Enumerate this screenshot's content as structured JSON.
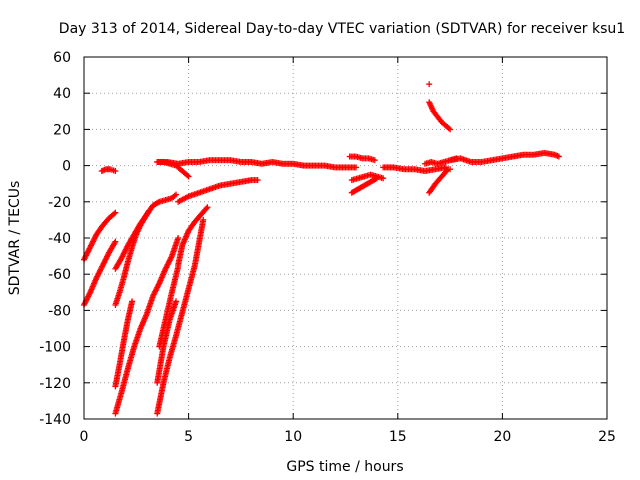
{
  "chart_data": {
    "type": "scatter",
    "title": "Day 313 of 2014, Sidereal Day-to-day VTEC variation (SDTVAR) for receiver ksu1",
    "xlabel": "GPS time / hours",
    "ylabel": "SDTVAR / TECUs",
    "xlim": [
      0,
      25
    ],
    "ylim": [
      -140,
      60
    ],
    "xticks": [
      0,
      5,
      10,
      15,
      20,
      25
    ],
    "yticks": [
      -140,
      -120,
      -100,
      -80,
      -60,
      -40,
      -20,
      0,
      20,
      40,
      60
    ],
    "grid": true,
    "marker": "+",
    "color": "#ff0000",
    "segments": [
      {
        "x": [
          0.0,
          0.3,
          0.6,
          0.9,
          1.2,
          1.5
        ],
        "y": [
          -52,
          -45,
          -38,
          -33,
          -29,
          -26
        ]
      },
      {
        "x": [
          0.0,
          0.3,
          0.6,
          0.9,
          1.2,
          1.5
        ],
        "y": [
          -77,
          -70,
          -62,
          -55,
          -48,
          -42
        ]
      },
      {
        "x": [
          0.85,
          1.05,
          1.25,
          1.5
        ],
        "y": [
          -3,
          -2,
          -2,
          -3
        ]
      },
      {
        "x": [
          1.5,
          1.7,
          1.9,
          2.1,
          2.3,
          2.5,
          2.7,
          2.9,
          3.1
        ],
        "y": [
          -77,
          -70,
          -62,
          -53,
          -45,
          -38,
          -33,
          -29,
          -25
        ]
      },
      {
        "x": [
          1.5,
          1.7,
          1.9,
          2.1,
          2.3
        ],
        "y": [
          -122,
          -110,
          -97,
          -85,
          -75
        ]
      },
      {
        "x": [
          1.5,
          1.8,
          2.1,
          2.4,
          2.7,
          3.0,
          3.3,
          3.6,
          3.9,
          4.2,
          4.5
        ],
        "y": [
          -137,
          -125,
          -112,
          -100,
          -90,
          -82,
          -72,
          -65,
          -57,
          -50,
          -40
        ]
      },
      {
        "x": [
          1.5,
          1.8,
          2.1,
          2.4,
          2.7,
          3.0,
          3.3,
          3.6,
          3.9,
          4.2,
          4.4
        ],
        "y": [
          -57,
          -51,
          -44,
          -38,
          -32,
          -27,
          -22,
          -20,
          -19,
          -18,
          -16
        ]
      },
      {
        "x": [
          3.5,
          3.8,
          4.1,
          4.4,
          4.7,
          5.0,
          5.3,
          5.7
        ],
        "y": [
          -137,
          -120,
          -106,
          -94,
          -81,
          -68,
          -55,
          -30
        ]
      },
      {
        "x": [
          4.5,
          4.7,
          5.0,
          5.3,
          5.6,
          5.9
        ],
        "y": [
          -55,
          -44,
          -36,
          -31,
          -27,
          -23
        ]
      },
      {
        "x": [
          3.5,
          3.8,
          4.1,
          4.4
        ],
        "y": [
          -120,
          -100,
          -85,
          -75
        ]
      },
      {
        "x": [
          3.6,
          3.9,
          4.2,
          4.5
        ],
        "y": [
          -100,
          -85,
          -70,
          -56
        ]
      },
      {
        "x": [
          4.5,
          5.0,
          5.5,
          6.0,
          6.5,
          7.0,
          7.5,
          8.0,
          8.3
        ],
        "y": [
          -20,
          -17,
          -15,
          -13,
          -11,
          -10,
          -9,
          -8,
          -8
        ]
      },
      {
        "x": [
          3.5,
          3.8,
          4.1,
          4.4,
          4.7,
          5.0
        ],
        "y": [
          2,
          2,
          1,
          0,
          -3,
          -6
        ]
      },
      {
        "x": [
          3.5,
          4.0,
          4.5,
          5.0,
          5.5,
          6.0,
          6.5,
          7.0,
          7.5,
          8.0,
          8.5,
          9.0,
          9.5,
          10.0,
          10.5,
          11.0,
          11.5,
          12.0,
          12.5,
          13.0
        ],
        "y": [
          2,
          2,
          1,
          2,
          2,
          3,
          3,
          3,
          2,
          2,
          1,
          2,
          1,
          1,
          0,
          0,
          0,
          -1,
          -1,
          -1
        ]
      },
      {
        "x": [
          12.7,
          13.0,
          13.3,
          13.6,
          13.9
        ],
        "y": [
          5,
          5,
          4,
          4,
          3
        ]
      },
      {
        "x": [
          12.8,
          13.1,
          13.4,
          13.7,
          14.0
        ],
        "y": [
          -15,
          -13,
          -11,
          -9,
          -7
        ]
      },
      {
        "x": [
          12.8,
          13.1,
          13.4,
          13.7,
          14.0,
          14.3
        ],
        "y": [
          -8,
          -7,
          -6,
          -5,
          -6,
          -7
        ]
      },
      {
        "x": [
          14.3,
          14.8,
          15.3,
          15.8,
          16.3,
          16.8,
          17.3
        ],
        "y": [
          -1,
          -1,
          -2,
          -2,
          -3,
          -2,
          -1
        ]
      },
      {
        "x": [
          16.5,
          16.8,
          17.1,
          17.4
        ],
        "y": [
          -15,
          -10,
          -6,
          -2
        ]
      },
      {
        "x": [
          16.5,
          16.7,
          16.9,
          17.1,
          17.3,
          17.5
        ],
        "y": [
          35,
          30,
          27,
          24,
          22,
          20
        ]
      },
      {
        "x": [
          16.3,
          16.6,
          16.9,
          17.2,
          17.5,
          17.8
        ],
        "y": [
          1,
          2,
          1,
          2,
          3,
          4
        ]
      },
      {
        "x": [
          17.5,
          18.0,
          18.5,
          19.0,
          19.5,
          20.0,
          20.5,
          21.0,
          21.5,
          22.0,
          22.5,
          22.7
        ],
        "y": [
          3,
          4,
          2,
          2,
          3,
          4,
          5,
          6,
          6,
          7,
          6,
          5
        ]
      },
      {
        "x": [
          16.5
        ],
        "y": [
          45
        ]
      },
      {
        "x": [
          17.5
        ],
        "y": [
          -2
        ]
      }
    ]
  }
}
